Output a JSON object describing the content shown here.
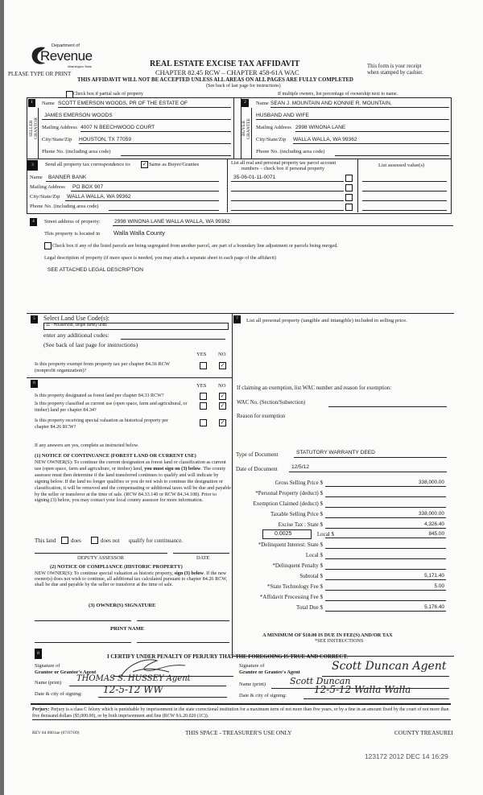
{
  "header": {
    "logo_line1": "Department of",
    "logo_main": "Revenue",
    "logo_line2": "Washington State",
    "please_type": "PLEASE TYPE OR PRINT",
    "title": "REAL ESTATE EXCISE TAX AFFIDAVIT",
    "chapter": "CHAPTER 82.45 RCW – CHAPTER 458-61A WAC",
    "receipt_note_1": "This form is your receipt",
    "receipt_note_2": "when stamped by cashier.",
    "warning": "THIS AFFIDAVIT WILL NOT BE ACCEPTED UNLESS ALL AREAS ON ALL PAGES ARE FULLY COMPLETED",
    "instructions_note": "(See back of last page for instructions)",
    "partial_sale_label": "Check box if partial sale of property",
    "partial_sale_checked": false,
    "multiple_owners_note": "If multiple owners, list percentage of ownership next to name."
  },
  "seller": {
    "number": "1",
    "side_label": "SELLER GRANTOR",
    "name_label": "Name",
    "name_line1": "SCOTT EMERSON WOODS, PR OF THE ESTATE OF",
    "name_line2": "JAMES EMERSON WOODS",
    "mailing_label": "Mailing Address",
    "mailing": "4007 N BEECHWOOD  COURT",
    "city_label": "City/State/Zip",
    "city": "HOUSTON, TX 77059",
    "phone_label": "Phone No. (including area code)"
  },
  "buyer": {
    "number": "2",
    "side_label": "BUYER GRANTEE",
    "name_label": "Name",
    "name_line1": "SEAN J. MOUNTAIN AND KONNIE R. MOUNTAIN,",
    "name_line2": "HUSBAND AND WIFE",
    "mailing_label": "Mailing Address",
    "mailing": "2998 WINONA LANE",
    "city_label": "City/State/Zip",
    "city": "WALLA WALLA, WA 99362",
    "phone_label": "Phone No. (including area code)"
  },
  "correspondence": {
    "number": "3",
    "label": "Send all property tax correspondence to:",
    "same_as_buyer_checked": true,
    "same_as_buyer_label": "Same as Buyer/Grantee",
    "name_label": "Name",
    "name": "BANNER BANK",
    "mailing_label": "Mailing Address",
    "mailing": "PO BOX 907",
    "city_label": "City/State/Zip",
    "city": "WALLA WALLA, WA 99362",
    "phone_label": "Phone No. (including area code)",
    "parcels_header_1": "List all real and personal property tax parcel account",
    "parcels_header_2": "numbers – check box if personal property",
    "assessed_header": "List assessed value(s)",
    "parcels": [
      "35-06-01-11-0071",
      "",
      "",
      ""
    ]
  },
  "property": {
    "number": "4",
    "street_label": "Street address of property:",
    "street": "2998 WINONA LANE WALLA WALLA, WA 99362",
    "located_label": "This property is located in",
    "county": "Walla Walla County",
    "segregated_label": "Check box if any of the listed parcels are being segregated from another parcel, are part of a boundary line adjustment or parcels being merged.",
    "legal_label": "Legal description of property (if more space is needed, you may attach a separate sheet to each page of the affidavit)",
    "legal_description": "SEE ATTACHED LEGAL DESCRIPTION"
  },
  "land_use": {
    "number": "5",
    "label": "Select Land Use Code(s):",
    "selected_code": "11 - Household, single family units",
    "additional_label": "enter any additional codes:",
    "see_back": "(See back of last page for instructions)",
    "yes": "YES",
    "no": "NO",
    "exempt_question": "Is this property exempt from property tax per chapter 84.36 RCW (nonprofit organization)?",
    "exempt_answer": "NO"
  },
  "section6": {
    "number": "6",
    "yes": "YES",
    "no": "NO",
    "questions": [
      {
        "text": "Is this property designated as forest land per chapter 84.33 RCW?",
        "answer": "NO"
      },
      {
        "text": "Is this property classified as current use (open space, farm and agricultural, or timber) land per chapter 84.34?",
        "answer": "NO"
      },
      {
        "text": "Is this property receiving special valuation as historical property per chapter 84.26 RCW?",
        "answer": "NO"
      }
    ],
    "if_yes": "If any answers are yes, complete as instructed below.",
    "notice1_title": "(1) NOTICE OF CONTINUANCE (FOREST LAND OR CURRENT USE)",
    "notice1_text_a": "NEW OWNER(S): To continue the current designation as forest land or classification as current use (open space, farm and agriculture, or timber) land,",
    "notice1_bold": "you must sign on (3) below",
    "notice1_text_b": ". The county assessor must then determine if the land transferred continues to qualify and will indicate by signing below. If the land no longer qualifies or you do not wish to continue the designation or classification, it will be removed and the compensating or additional taxes will be due and payable by the seller or transferor at the time of sale. (RCW 84.33.140 or RCW 84.34.108). Prior to signing (3) below, you may contact your local county assessor for more information.",
    "this_land": "This land",
    "does": "does",
    "does_not": "does not",
    "qualify": "qualify for continuance.",
    "deputy_assessor": "DEPUTY ASSESSOR",
    "date": "DATE",
    "notice2_title": "(2) NOTICE OF COMPLIANCE (HISTORIC PROPERTY)",
    "notice2_text_a": "NEW OWNER(S): To continue special valuation as historic property,",
    "notice2_bold": "sign (3) below",
    "notice2_text_b": ". If the new owner(s) does not wish to continue, all additional tax calculated pursuant to chapter 84.26 RCW, shall be due and payable by the seller or transferor at the time of sale.",
    "owner_signature": "(3)  OWNER(S) SIGNATURE",
    "print_name": "PRINT NAME"
  },
  "section7": {
    "number": "7",
    "personal_property_label": "List all  personal property (tangible and intangible) included in selling price.",
    "exemption_label": "If claiming an exemption, list WAC number and reason for exemption:",
    "wac_label": "WAC No. (Section/Subsection)",
    "reason_label": "Reason for exemption",
    "doc_type_label": "Type of Document",
    "doc_type": "STATUTORY WARRANTY DEED",
    "doc_date_label": "Date of Document",
    "doc_date": "12/5/12",
    "local_rate": "0.0025",
    "rows": [
      {
        "label": "Gross Selling Price $",
        "value": "338,000.00"
      },
      {
        "label": "*Personal Property (deduct) $",
        "value": ""
      },
      {
        "label": "Exemption Claimed (deduct) $",
        "value": ""
      },
      {
        "label": "Taxable Selling Price $",
        "value": "338,000.00"
      },
      {
        "label": "Excise Tax : State $",
        "value": "4,326.40"
      },
      {
        "label": "Local $",
        "value": "845.00"
      },
      {
        "label": "*Delinquent Interest: State $",
        "value": ""
      },
      {
        "label": "Local $",
        "value": ""
      },
      {
        "label": "*Delinquent Penalty $",
        "value": ""
      },
      {
        "label": "Subtotal $",
        "value": "5,171.40"
      },
      {
        "label": "*State Technology Fee $",
        "value": "5.00"
      },
      {
        "label": "*Affidavit Processing Fee $",
        "value": ""
      },
      {
        "label": "Total Due $",
        "value": "5,176.40"
      }
    ],
    "minimum_note": "A MINIMUM OF $10.00 IS DUE IN FEE(S) AND/OR TAX",
    "see_instructions": "*SEE INSTRUCTIONS"
  },
  "certification": {
    "number": "8",
    "statement": "I CERTIFY UNDER PENALTY OF PERJURY THAT THE FOREGOING IS TRUE AND CORRECT.",
    "grantor_sig_label_1": "Signature of",
    "grantor_sig_label_2": "Grantor or Grantor's Agent",
    "grantor_name_label": "Name (print)",
    "grantor_name": "THOMAS S. HUSSEY Agent",
    "grantor_date_label": "Date & city of signing:",
    "grantor_date": "12-5-12 WW",
    "grantee_sig_label_1": "Signature of",
    "grantee_sig_label_2": "Grantee or Grantee's Agent",
    "grantee_signature": "Scott Duncan Agent",
    "grantee_name_label": "Name (print)",
    "grantee_name": "Scott Duncan",
    "grantee_date_label": "Date & city of signing:",
    "grantee_date": "12-5-12 Walla Walla",
    "perjury_bold": "Perjury:",
    "perjury_text": " Perjury is a class C felony which is punishable by imprisonment in the state correctional institution for a maximum term of not more than five years, or by a fine in an amount fixed by the court of not more than five thousand dollars ($5,000.00), or by both imprisonment and fine (RCW 9A.20.020 (1C))."
  },
  "footer": {
    "rev": "REV 84 0001ae (07/07/09)",
    "treasurer_space": "THIS SPACE - TREASURER'S USE ONLY",
    "county_treasurer": "COUNTY TREASUREI",
    "stamp": "123172 2012 DEC 14 16:29"
  }
}
